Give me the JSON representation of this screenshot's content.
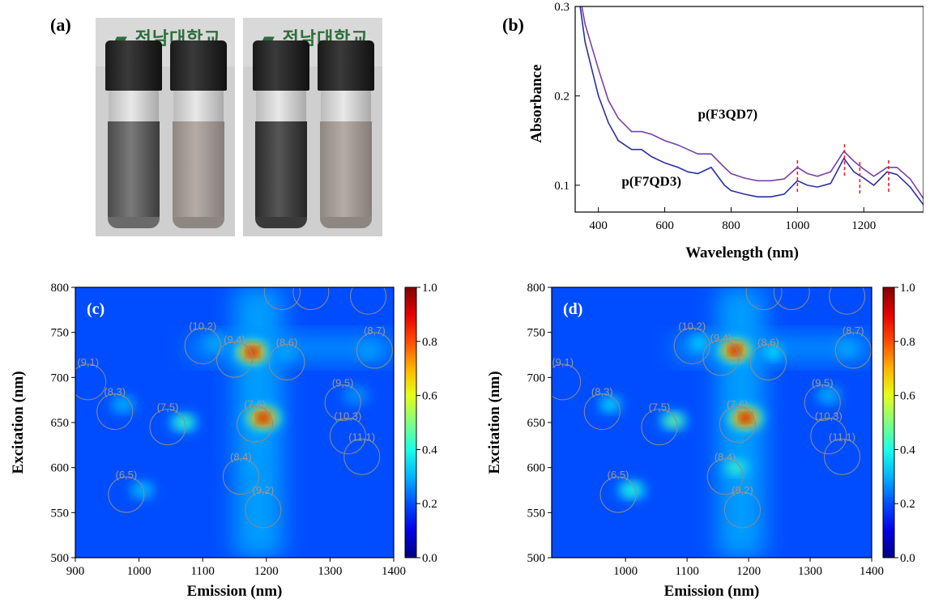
{
  "panel_a": {
    "label": "(a)",
    "photo_left": {
      "logo": "전남대학교"
    },
    "photo_right": {
      "logo": "전남대학교"
    }
  },
  "panel_b": {
    "label": "(b)",
    "xlabel": "Wavelength (nm)",
    "ylabel": "Absorbance",
    "xticks": [
      "400",
      "600",
      "800",
      "1000",
      "1200"
    ],
    "yticks": [
      "0.1",
      "0.2",
      "0.3"
    ],
    "series": [
      {
        "name": "p(F3QD7)",
        "color": "#7a3fa8"
      },
      {
        "name": "p(F7QD3)",
        "color": "#2a2fa0"
      }
    ],
    "marker_color": "#e0202a"
  },
  "panel_c": {
    "label": "(c)",
    "xlabel": "Emission (nm)",
    "ylabel": "Excitation (nm)",
    "xticks": [
      "900",
      "1000",
      "1100",
      "1200",
      "1300",
      "1400"
    ],
    "yticks": [
      "500",
      "550",
      "600",
      "650",
      "700",
      "750",
      "800"
    ],
    "colorbar_ticks": [
      "0.0",
      "0.2",
      "0.4",
      "0.6",
      "0.8",
      "1.0"
    ]
  },
  "panel_d": {
    "label": "(d)",
    "xlabel": "Emission (nm)",
    "ylabel": "Excitation (nm)",
    "xticks": [
      "1000",
      "1100",
      "1200",
      "1300",
      "1400"
    ],
    "yticks": [
      "500",
      "550",
      "600",
      "650",
      "700",
      "750",
      "800"
    ],
    "colorbar_ticks": [
      "0.0",
      "0.2",
      "0.4",
      "0.6",
      "0.8",
      "1.0"
    ]
  },
  "chart_data": [
    {
      "type": "line",
      "panel": "(b)",
      "title": "",
      "xlabel": "Wavelength (nm)",
      "ylabel": "Absorbance",
      "xlim": [
        330,
        1380
      ],
      "ylim": [
        0.07,
        0.3
      ],
      "series": [
        {
          "name": "p(F3QD7)",
          "x": [
            330,
            360,
            400,
            430,
            460,
            500,
            530,
            560,
            600,
            640,
            670,
            700,
            740,
            780,
            800,
            840,
            880,
            920,
            960,
            1000,
            1030,
            1060,
            1100,
            1140,
            1170,
            1200,
            1230,
            1270,
            1300,
            1340,
            1380
          ],
          "y": [
            0.34,
            0.28,
            0.23,
            0.195,
            0.175,
            0.16,
            0.16,
            0.157,
            0.15,
            0.145,
            0.14,
            0.135,
            0.135,
            0.12,
            0.113,
            0.108,
            0.105,
            0.105,
            0.107,
            0.12,
            0.113,
            0.11,
            0.115,
            0.138,
            0.127,
            0.118,
            0.11,
            0.12,
            0.12,
            0.107,
            0.085
          ]
        },
        {
          "name": "p(F7QD3)",
          "x": [
            330,
            360,
            400,
            430,
            460,
            500,
            530,
            560,
            600,
            640,
            670,
            700,
            740,
            780,
            800,
            840,
            880,
            920,
            960,
            1000,
            1030,
            1060,
            1100,
            1140,
            1170,
            1200,
            1230,
            1270,
            1300,
            1340,
            1380
          ],
          "y": [
            0.34,
            0.26,
            0.2,
            0.17,
            0.15,
            0.14,
            0.14,
            0.132,
            0.125,
            0.12,
            0.115,
            0.113,
            0.12,
            0.1,
            0.094,
            0.09,
            0.087,
            0.087,
            0.09,
            0.105,
            0.1,
            0.098,
            0.102,
            0.13,
            0.115,
            0.108,
            0.1,
            0.115,
            0.112,
            0.098,
            0.078
          ]
        }
      ],
      "markers_x": [
        1000,
        1142,
        1188,
        1275
      ]
    },
    {
      "type": "heatmap",
      "panel": "(c)",
      "xlabel": "Emission (nm)",
      "ylabel": "Excitation (nm)",
      "xlim": [
        900,
        1400
      ],
      "ylim": [
        500,
        800
      ],
      "zlim": [
        0,
        1
      ],
      "peaks": [
        {
          "x": 1178,
          "y": 728,
          "z": 1.0
        },
        {
          "x": 1195,
          "y": 655,
          "z": 1.0
        },
        {
          "x": 1070,
          "y": 650,
          "z": 0.45
        },
        {
          "x": 1005,
          "y": 575,
          "z": 0.32
        },
        {
          "x": 1120,
          "y": 738,
          "z": 0.3
        },
        {
          "x": 975,
          "y": 670,
          "z": 0.3
        },
        {
          "x": 1180,
          "y": 600,
          "z": 0.3
        },
        {
          "x": 1360,
          "y": 730,
          "z": 0.28
        },
        {
          "x": 1340,
          "y": 680,
          "z": 0.25
        },
        {
          "x": 1230,
          "y": 728,
          "z": 0.3
        }
      ],
      "chiralities": [
        {
          "label": "(9,1)",
          "x": 920,
          "y": 695
        },
        {
          "label": "(8,3)",
          "x": 962,
          "y": 662
        },
        {
          "label": "(7,5)",
          "x": 1045,
          "y": 645
        },
        {
          "label": "(6,5)",
          "x": 980,
          "y": 570
        },
        {
          "label": "(10,2)",
          "x": 1100,
          "y": 735
        },
        {
          "label": "(9,4)",
          "x": 1150,
          "y": 720
        },
        {
          "label": "(8,6)",
          "x": 1232,
          "y": 717
        },
        {
          "label": "(7,6)",
          "x": 1182,
          "y": 648
        },
        {
          "label": "(8,4)",
          "x": 1160,
          "y": 590
        },
        {
          "label": "(9,2)",
          "x": 1195,
          "y": 553
        },
        {
          "label": "(8,7)",
          "x": 1370,
          "y": 730
        },
        {
          "label": "(9,5)",
          "x": 1320,
          "y": 672
        },
        {
          "label": "(10,3)",
          "x": 1328,
          "y": 635
        },
        {
          "label": "(11,1)",
          "x": 1350,
          "y": 612
        },
        {
          "label": "",
          "x": 1225,
          "y": 795
        },
        {
          "label": "",
          "x": 1270,
          "y": 795
        },
        {
          "label": "",
          "x": 1360,
          "y": 790
        }
      ]
    },
    {
      "type": "heatmap",
      "panel": "(d)",
      "xlabel": "Emission (nm)",
      "ylabel": "Excitation (nm)",
      "xlim": [
        880,
        1400
      ],
      "ylim": [
        500,
        800
      ],
      "zlim": [
        0,
        1
      ],
      "peaks": [
        {
          "x": 1178,
          "y": 730,
          "z": 1.0
        },
        {
          "x": 1195,
          "y": 655,
          "z": 0.98
        },
        {
          "x": 1078,
          "y": 652,
          "z": 0.5
        },
        {
          "x": 1010,
          "y": 575,
          "z": 0.42
        },
        {
          "x": 975,
          "y": 670,
          "z": 0.35
        },
        {
          "x": 1180,
          "y": 600,
          "z": 0.45
        },
        {
          "x": 1120,
          "y": 738,
          "z": 0.35
        },
        {
          "x": 1240,
          "y": 728,
          "z": 0.38
        },
        {
          "x": 1360,
          "y": 732,
          "z": 0.3
        },
        {
          "x": 1330,
          "y": 680,
          "z": 0.3
        }
      ],
      "chiralities": [
        {
          "label": "(9,1)",
          "x": 898,
          "y": 695
        },
        {
          "label": "(8,3)",
          "x": 962,
          "y": 662
        },
        {
          "label": "(7,5)",
          "x": 1055,
          "y": 645
        },
        {
          "label": "(6,5)",
          "x": 988,
          "y": 570
        },
        {
          "label": "(10,2)",
          "x": 1108,
          "y": 735
        },
        {
          "label": "(9,4)",
          "x": 1155,
          "y": 722
        },
        {
          "label": "(8,6)",
          "x": 1232,
          "y": 717
        },
        {
          "label": "(7,6)",
          "x": 1182,
          "y": 648
        },
        {
          "label": "(8,4)",
          "x": 1162,
          "y": 590
        },
        {
          "label": "(9,2)",
          "x": 1190,
          "y": 553
        },
        {
          "label": "(8,7)",
          "x": 1370,
          "y": 730
        },
        {
          "label": "(9,5)",
          "x": 1320,
          "y": 672
        },
        {
          "label": "(10,3)",
          "x": 1330,
          "y": 635
        },
        {
          "label": "(11,1)",
          "x": 1352,
          "y": 612
        },
        {
          "label": "",
          "x": 1225,
          "y": 795
        },
        {
          "label": "",
          "x": 1270,
          "y": 795
        },
        {
          "label": "",
          "x": 1360,
          "y": 790
        }
      ]
    }
  ]
}
